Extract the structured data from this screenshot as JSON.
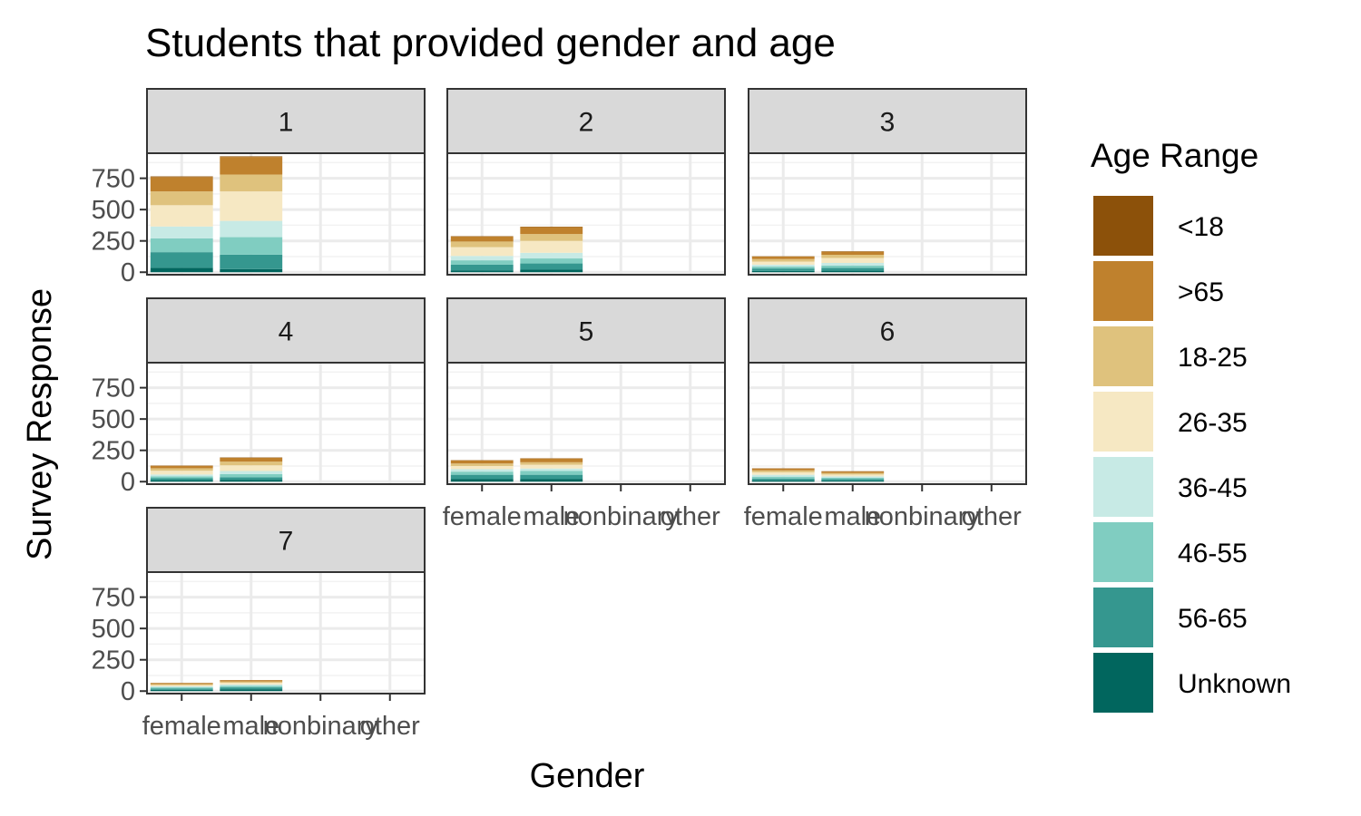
{
  "chart_data": {
    "type": "bar",
    "stacked": true,
    "title": "Students that provided gender and age",
    "xlabel": "Gender",
    "ylabel": "Survey Response",
    "categories": [
      "female",
      "male",
      "nonbinary",
      "other"
    ],
    "y_ticks": [
      0,
      250,
      500,
      750
    ],
    "ylim": [
      -20,
      950
    ],
    "grid": true,
    "legend": {
      "title": "Age Range",
      "position": "right",
      "items": [
        {
          "label": "<18",
          "color": "#8c510a"
        },
        {
          "label": ">65",
          "color": "#bf812d"
        },
        {
          "label": "18-25",
          "color": "#dfc27d"
        },
        {
          "label": "26-35",
          "color": "#f6e8c3"
        },
        {
          "label": "36-45",
          "color": "#c7eae5"
        },
        {
          "label": "46-55",
          "color": "#80cdc1"
        },
        {
          "label": "56-65",
          "color": "#35978f"
        },
        {
          "label": "Unknown",
          "color": "#01665e"
        }
      ]
    },
    "stack_order_bottom_to_top": [
      "Unknown",
      "56-65",
      "46-55",
      "36-45",
      "26-35",
      "18-25",
      ">65",
      "<18"
    ],
    "panels": [
      {
        "label": "1",
        "bars": {
          "female": {
            "Unknown": 35,
            "56-65": 125,
            "46-55": 110,
            "36-45": 95,
            "26-35": 170,
            "18-25": 110,
            ">65": 115,
            "<18": 5
          },
          "male": {
            "Unknown": 25,
            "56-65": 115,
            "46-55": 140,
            "36-45": 130,
            "26-35": 235,
            "18-25": 135,
            ">65": 140,
            "<18": 5
          }
        }
      },
      {
        "label": "2",
        "bars": {
          "female": {
            "Unknown": 15,
            "56-65": 45,
            "46-55": 35,
            "36-45": 35,
            "26-35": 70,
            "18-25": 45,
            ">65": 40,
            "<18": 3
          },
          "male": {
            "Unknown": 20,
            "56-65": 50,
            "46-55": 40,
            "36-45": 45,
            "26-35": 95,
            "18-25": 55,
            ">65": 55,
            "<18": 3
          }
        }
      },
      {
        "label": "3",
        "bars": {
          "female": {
            "Unknown": 10,
            "56-65": 20,
            "46-55": 15,
            "36-45": 15,
            "26-35": 25,
            "18-25": 20,
            ">65": 20,
            "<18": 2
          },
          "male": {
            "Unknown": 12,
            "56-65": 22,
            "46-55": 20,
            "36-45": 20,
            "26-35": 40,
            "18-25": 25,
            ">65": 25,
            "<18": 3
          }
        }
      },
      {
        "label": "4",
        "bars": {
          "female": {
            "Unknown": 12,
            "56-65": 15,
            "46-55": 15,
            "36-45": 15,
            "26-35": 30,
            "18-25": 20,
            ">65": 20,
            "<18": 2
          },
          "male": {
            "Unknown": 15,
            "56-65": 20,
            "46-55": 25,
            "36-45": 25,
            "26-35": 45,
            "18-25": 30,
            ">65": 30,
            "<18": 3
          }
        }
      },
      {
        "label": "5",
        "bars": {
          "female": {
            "Unknown": 20,
            "56-65": 35,
            "46-55": 25,
            "36-45": 20,
            "26-35": 25,
            "18-25": 20,
            ">65": 25,
            "<18": 2
          },
          "male": {
            "Unknown": 20,
            "56-65": 35,
            "46-55": 30,
            "36-45": 20,
            "26-35": 30,
            "18-25": 20,
            ">65": 30,
            "<18": 2
          }
        }
      },
      {
        "label": "6",
        "bars": {
          "female": {
            "Unknown": 10,
            "56-65": 15,
            "46-55": 15,
            "36-45": 15,
            "26-35": 20,
            "18-25": 15,
            ">65": 15,
            "<18": 2
          },
          "male": {
            "Unknown": 8,
            "56-65": 12,
            "46-55": 12,
            "36-45": 10,
            "26-35": 15,
            "18-25": 12,
            ">65": 12,
            "<18": 2
          }
        }
      },
      {
        "label": "7",
        "bars": {
          "female": {
            "Unknown": 10,
            "56-65": 10,
            "46-55": 10,
            "36-45": 8,
            "26-35": 10,
            "18-25": 8,
            ">65": 8,
            "<18": 1
          },
          "male": {
            "Unknown": 15,
            "56-65": 15,
            "46-55": 12,
            "36-45": 10,
            "26-35": 15,
            "18-25": 10,
            ">65": 10,
            "<18": 1
          }
        }
      }
    ]
  }
}
